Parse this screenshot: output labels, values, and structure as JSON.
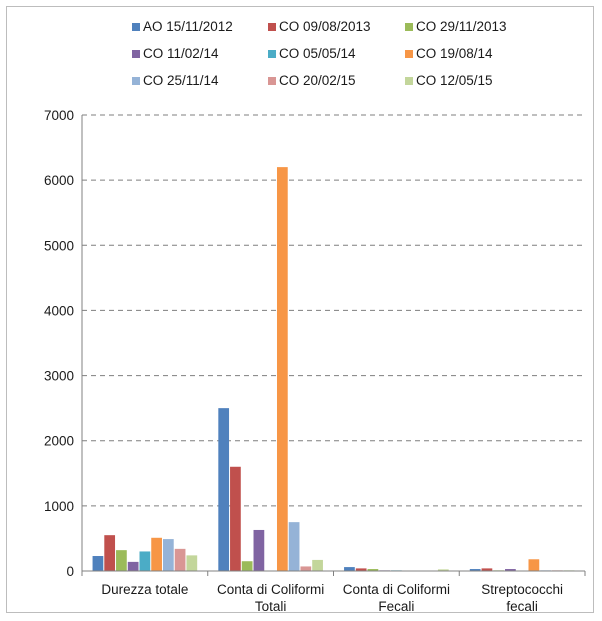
{
  "chart_data": {
    "type": "bar",
    "title": "",
    "xlabel": "",
    "ylabel": "",
    "ylim": [
      0,
      7000
    ],
    "yticks": [
      0,
      1000,
      2000,
      3000,
      4000,
      5000,
      6000,
      7000
    ],
    "grid": "horizontal-dashed",
    "legend_position": "top",
    "categories": [
      [
        "Durezza totale"
      ],
      [
        "Conta di Coliformi",
        "Totali"
      ],
      [
        "Conta di Coliformi",
        "Fecali"
      ],
      [
        "Streptococchi",
        "fecali"
      ]
    ],
    "series": [
      {
        "name": "AO 15/11/2012",
        "color": "#4f81bd",
        "values": [
          230,
          2500,
          60,
          30
        ]
      },
      {
        "name": "CO 09/08/2013",
        "color": "#c0504d",
        "values": [
          550,
          1600,
          40,
          40
        ]
      },
      {
        "name": "CO 29/11/2013",
        "color": "#9bbb59",
        "values": [
          320,
          150,
          30,
          10
        ]
      },
      {
        "name": "CO 11/02/14",
        "color": "#8064a2",
        "values": [
          140,
          630,
          10,
          30
        ]
      },
      {
        "name": "CO 05/05/14",
        "color": "#4bacc6",
        "values": [
          300,
          0,
          10,
          5
        ]
      },
      {
        "name": "CO 19/08/14",
        "color": "#f79646",
        "values": [
          510,
          6200,
          5,
          180
        ]
      },
      {
        "name": "CO 25/11/14",
        "color": "#95b3d7",
        "values": [
          490,
          750,
          5,
          10
        ]
      },
      {
        "name": "CO 20/02/15",
        "color": "#d99694",
        "values": [
          340,
          70,
          5,
          10
        ]
      },
      {
        "name": "CO 12/05/15",
        "color": "#c3d69b",
        "values": [
          240,
          170,
          25,
          10
        ]
      }
    ]
  }
}
